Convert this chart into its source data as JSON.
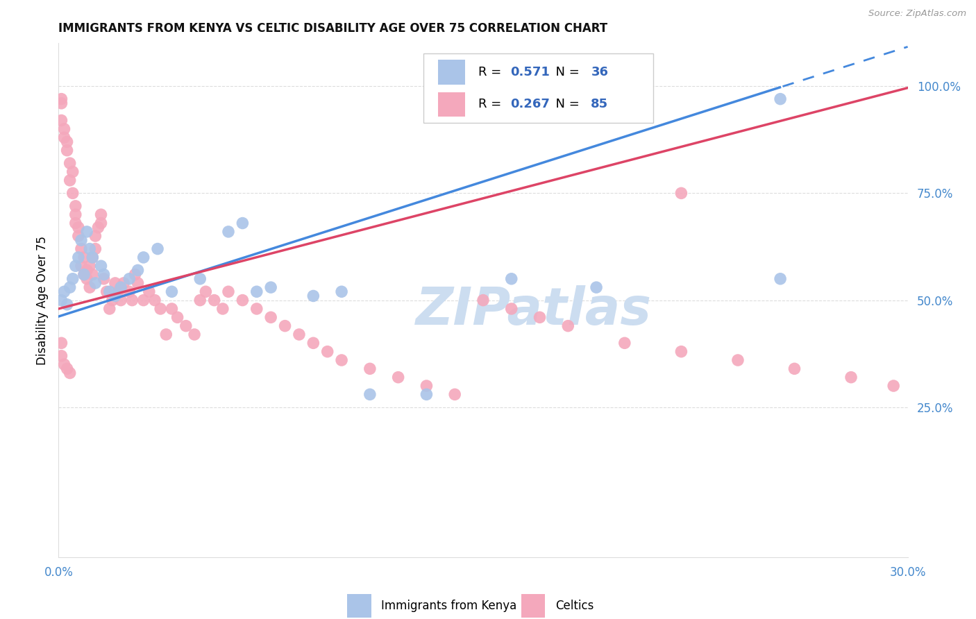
{
  "title": "IMMIGRANTS FROM KENYA VS CELTIC DISABILITY AGE OVER 75 CORRELATION CHART",
  "source": "Source: ZipAtlas.com",
  "ylabel": "Disability Age Over 75",
  "xlim": [
    0.0,
    0.3
  ],
  "ylim_low": -0.1,
  "ylim_high": 1.1,
  "xtick_positions": [
    0.0,
    0.05,
    0.1,
    0.15,
    0.2,
    0.25,
    0.3
  ],
  "xtick_labels": [
    "0.0%",
    "",
    "",
    "",
    "",
    "",
    "30.0%"
  ],
  "ytick_positions": [
    0.25,
    0.5,
    0.75,
    1.0
  ],
  "ytick_labels": [
    "25.0%",
    "50.0%",
    "75.0%",
    "100.0%"
  ],
  "R_blue": "0.571",
  "N_blue": "36",
  "R_pink": "0.267",
  "N_pink": "85",
  "blue_scatter_color": "#aac4e8",
  "pink_scatter_color": "#f4a8bc",
  "blue_line_color": "#4488dd",
  "pink_line_color": "#dd4466",
  "axis_tick_color": "#4488cc",
  "grid_color": "#dddddd",
  "title_color": "#111111",
  "watermark_color": "#ccddf0",
  "legend_R_N_color": "#3366bb",
  "bottom_legend_blue_label": "Immigrants from Kenya",
  "bottom_legend_pink_label": "Celtics",
  "watermark_text": "ZIPatlas",
  "scatter_size": 160,
  "blue_line_intercept": 0.462,
  "blue_line_slope": 2.1,
  "pink_line_intercept": 0.48,
  "pink_line_slope": 1.72,
  "blue_x": [
    0.001,
    0.002,
    0.003,
    0.004,
    0.005,
    0.006,
    0.007,
    0.008,
    0.009,
    0.01,
    0.011,
    0.012,
    0.013,
    0.015,
    0.016,
    0.018,
    0.02,
    0.022,
    0.025,
    0.028,
    0.03,
    0.035,
    0.04,
    0.05,
    0.06,
    0.065,
    0.07,
    0.075,
    0.09,
    0.1,
    0.11,
    0.13,
    0.16,
    0.19,
    0.255,
    0.255
  ],
  "blue_y": [
    0.5,
    0.52,
    0.49,
    0.53,
    0.55,
    0.58,
    0.6,
    0.64,
    0.56,
    0.66,
    0.62,
    0.6,
    0.54,
    0.58,
    0.56,
    0.52,
    0.51,
    0.53,
    0.55,
    0.57,
    0.6,
    0.62,
    0.52,
    0.55,
    0.66,
    0.68,
    0.52,
    0.53,
    0.51,
    0.52,
    0.28,
    0.28,
    0.55,
    0.53,
    0.55,
    0.97
  ],
  "pink_x": [
    0.001,
    0.001,
    0.001,
    0.002,
    0.002,
    0.003,
    0.003,
    0.004,
    0.004,
    0.005,
    0.005,
    0.006,
    0.006,
    0.006,
    0.007,
    0.007,
    0.008,
    0.008,
    0.009,
    0.009,
    0.01,
    0.01,
    0.011,
    0.011,
    0.012,
    0.012,
    0.013,
    0.013,
    0.014,
    0.015,
    0.015,
    0.016,
    0.017,
    0.018,
    0.019,
    0.02,
    0.021,
    0.022,
    0.023,
    0.025,
    0.026,
    0.027,
    0.028,
    0.03,
    0.032,
    0.034,
    0.036,
    0.038,
    0.04,
    0.042,
    0.045,
    0.048,
    0.05,
    0.052,
    0.055,
    0.058,
    0.06,
    0.065,
    0.07,
    0.075,
    0.08,
    0.085,
    0.09,
    0.095,
    0.1,
    0.11,
    0.12,
    0.13,
    0.14,
    0.15,
    0.16,
    0.17,
    0.18,
    0.2,
    0.22,
    0.24,
    0.26,
    0.28,
    0.295,
    0.22,
    0.001,
    0.001,
    0.002,
    0.003,
    0.004
  ],
  "pink_y": [
    0.97,
    0.92,
    0.96,
    0.88,
    0.9,
    0.85,
    0.87,
    0.82,
    0.78,
    0.8,
    0.75,
    0.72,
    0.68,
    0.7,
    0.65,
    0.67,
    0.62,
    0.58,
    0.6,
    0.56,
    0.55,
    0.57,
    0.53,
    0.58,
    0.56,
    0.6,
    0.62,
    0.65,
    0.67,
    0.7,
    0.68,
    0.55,
    0.52,
    0.48,
    0.5,
    0.54,
    0.52,
    0.5,
    0.54,
    0.52,
    0.5,
    0.56,
    0.54,
    0.5,
    0.52,
    0.5,
    0.48,
    0.42,
    0.48,
    0.46,
    0.44,
    0.42,
    0.5,
    0.52,
    0.5,
    0.48,
    0.52,
    0.5,
    0.48,
    0.46,
    0.44,
    0.42,
    0.4,
    0.38,
    0.36,
    0.34,
    0.32,
    0.3,
    0.28,
    0.5,
    0.48,
    0.46,
    0.44,
    0.4,
    0.38,
    0.36,
    0.34,
    0.32,
    0.3,
    0.75,
    0.4,
    0.37,
    0.35,
    0.34,
    0.33
  ]
}
